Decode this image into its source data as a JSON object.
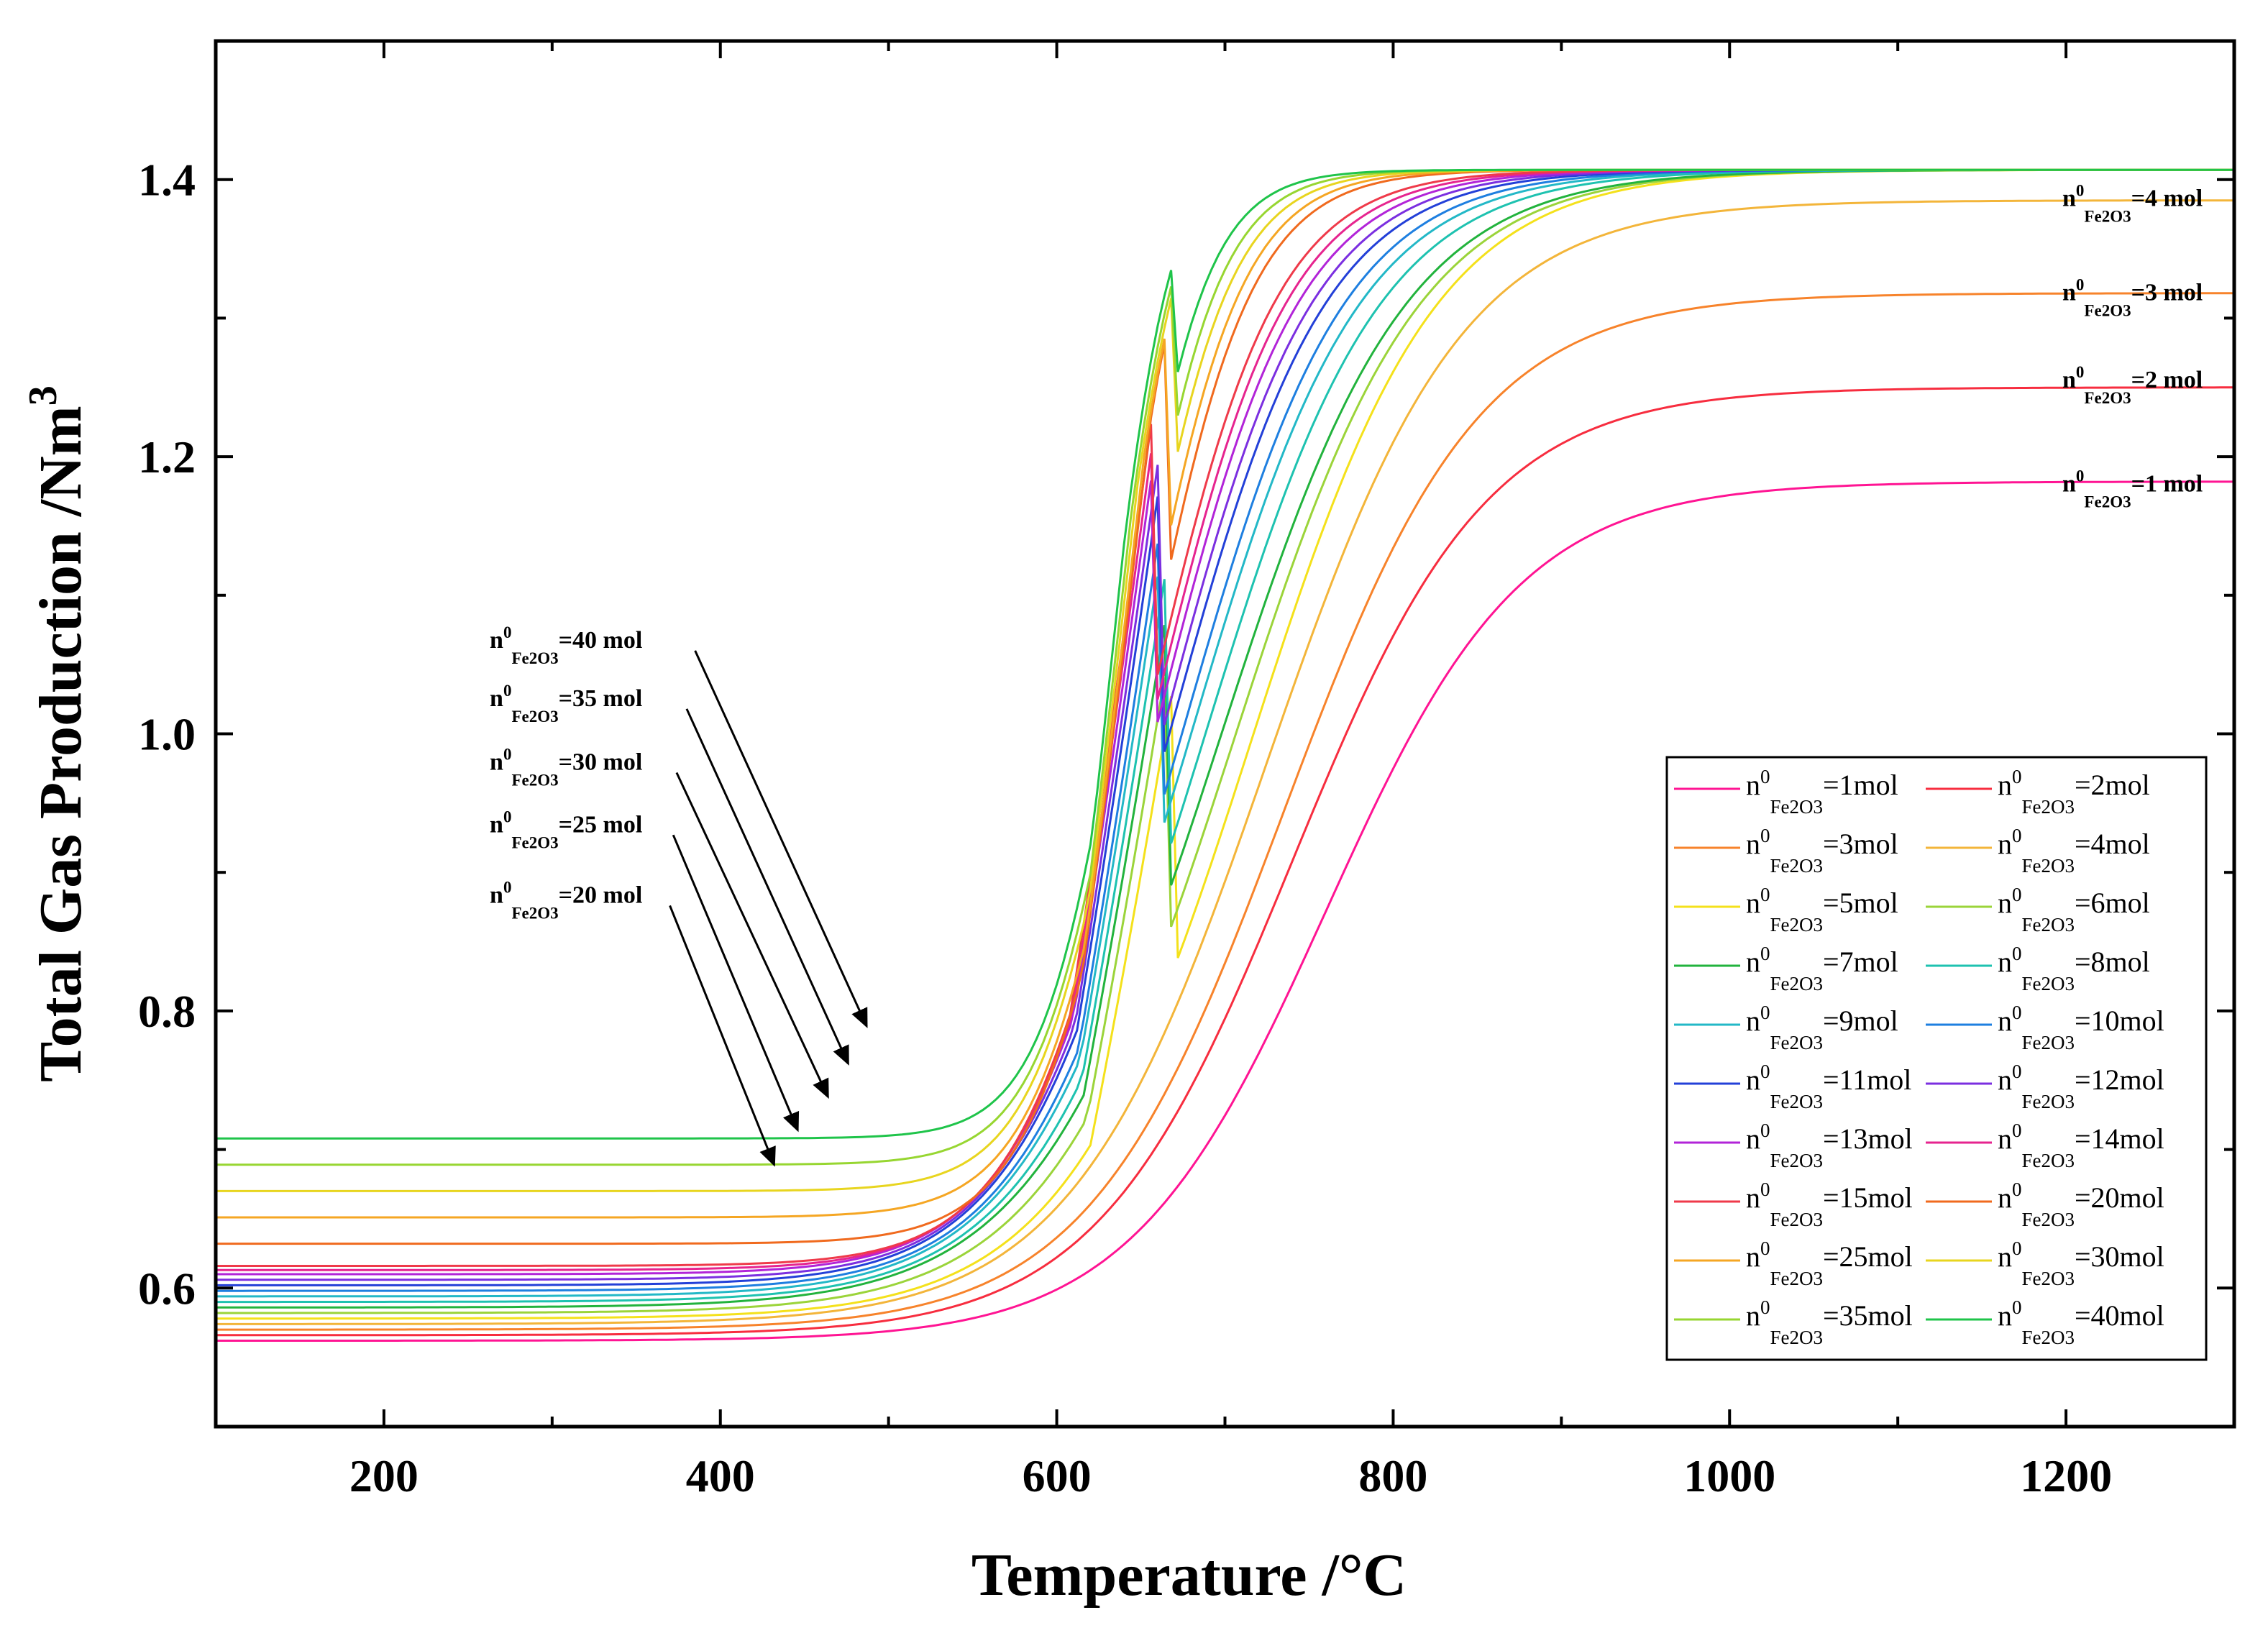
{
  "chart_data": {
    "type": "line",
    "title": "",
    "xlabel": "Temperature /°C",
    "ylabel": "Total Gas Production /Nm",
    "ylabel_sup": "3",
    "xlim": [
      100,
      1300
    ],
    "ylim": [
      0.5,
      1.5
    ],
    "x_ticks": [
      200,
      400,
      600,
      800,
      1000,
      1200
    ],
    "x_tick_labels": [
      "200",
      "400",
      "600",
      "800",
      "1000",
      "1200"
    ],
    "y_ticks": [
      0.6,
      0.8,
      1.0,
      1.2,
      1.4
    ],
    "y_tick_labels": [
      "0.6",
      "0.8",
      "1.0",
      "1.2",
      "1.4"
    ],
    "grid": false,
    "legend_position": "bottom-right",
    "legend_label_parts": {
      "n": "n",
      "sup": "0",
      "sub1": "Fe",
      "sub2": "2",
      "sub3": "O",
      "sub4": "3",
      "eq": "="
    },
    "series": [
      {
        "name": "n0Fe2O3=1mol",
        "label_value": "1mol",
        "color": "#ff1493",
        "y_start": 0.562,
        "mid": 760,
        "width": 58,
        "rise_end": 643,
        "y_plateau": 1.182
      },
      {
        "name": "n0Fe2O3=2mol",
        "label_value": "2mol",
        "color": "#f72d3f",
        "y_start": 0.566,
        "mid": 740,
        "width": 58,
        "rise_end": 638,
        "y_plateau": 1.25
      },
      {
        "name": "n0Fe2O3=3mol",
        "label_value": "3mol",
        "color": "#f7832b",
        "y_start": 0.57,
        "mid": 735,
        "width": 58,
        "rise_end": 634,
        "y_plateau": 1.318
      },
      {
        "name": "n0Fe2O3=4mol",
        "label_value": "4mol",
        "color": "#f3b53a",
        "y_start": 0.574,
        "mid": 725,
        "width": 58,
        "rise_end": 632,
        "y_plateau": 1.385
      },
      {
        "name": "n0Fe2O3=5mol",
        "label_value": "5mol",
        "color": "#f4e11b",
        "y_start": 0.578,
        "mid": 715,
        "width": 55,
        "rise_end": 630,
        "y_plateau": 1.407
      },
      {
        "name": "n0Fe2O3=6mol",
        "label_value": "6mol",
        "color": "#9bd43a",
        "y_start": 0.582,
        "mid": 705,
        "width": 55,
        "rise_end": 628,
        "y_plateau": 1.407
      },
      {
        "name": "n0Fe2O3=7mol",
        "label_value": "7mol",
        "color": "#22b33d",
        "y_start": 0.586,
        "mid": 697,
        "width": 55,
        "rise_end": 626,
        "y_plateau": 1.407
      },
      {
        "name": "n0Fe2O3=8mol",
        "label_value": "8mol",
        "color": "#1ec2b0",
        "y_start": 0.59,
        "mid": 688,
        "width": 52,
        "rise_end": 625,
        "y_plateau": 1.407
      },
      {
        "name": "n0Fe2O3=9mol",
        "label_value": "9mol",
        "color": "#23b8c7",
        "y_start": 0.594,
        "mid": 680,
        "width": 50,
        "rise_end": 624,
        "y_plateau": 1.407
      },
      {
        "name": "n0Fe2O3=10mol",
        "label_value": "10mol",
        "color": "#1e7fe0",
        "y_start": 0.598,
        "mid": 675,
        "width": 48,
        "rise_end": 623,
        "y_plateau": 1.407
      },
      {
        "name": "n0Fe2O3=11mol",
        "label_value": "11mol",
        "color": "#2340d8",
        "y_start": 0.602,
        "mid": 668,
        "width": 46,
        "rise_end": 622,
        "y_plateau": 1.407
      },
      {
        "name": "n0Fe2O3=12mol",
        "label_value": "12mol",
        "color": "#7b2fe0",
        "y_start": 0.606,
        "mid": 664,
        "width": 44,
        "rise_end": 621,
        "y_plateau": 1.407
      },
      {
        "name": "n0Fe2O3=13mol",
        "label_value": "13mol",
        "color": "#b224d8",
        "y_start": 0.61,
        "mid": 660,
        "width": 42,
        "rise_end": 620,
        "y_plateau": 1.407
      },
      {
        "name": "n0Fe2O3=14mol",
        "label_value": "14mol",
        "color": "#e6248f",
        "y_start": 0.613,
        "mid": 657,
        "width": 40,
        "rise_end": 619,
        "y_plateau": 1.407
      },
      {
        "name": "n0Fe2O3=15mol",
        "label_value": "15mol",
        "color": "#ef3a4a",
        "y_start": 0.616,
        "mid": 654,
        "width": 38,
        "rise_end": 618,
        "y_plateau": 1.407
      },
      {
        "name": "n0Fe2O3=20mol",
        "label_value": "20mol",
        "color": "#f06a1e",
        "y_start": 0.632,
        "mid": 650,
        "width": 32,
        "rise_end": 625,
        "y_plateau": 1.407
      },
      {
        "name": "n0Fe2O3=25mol",
        "label_value": "25mol",
        "color": "#f5a623",
        "y_start": 0.651,
        "mid": 648,
        "width": 30,
        "rise_end": 627,
        "y_plateau": 1.407
      },
      {
        "name": "n0Fe2O3=30mol",
        "label_value": "30mol",
        "color": "#e8d51f",
        "y_start": 0.67,
        "mid": 645,
        "width": 28,
        "rise_end": 629,
        "y_plateau": 1.407
      },
      {
        "name": "n0Fe2O3=35mol",
        "label_value": "35mol",
        "color": "#97d631",
        "y_start": 0.689,
        "mid": 643,
        "width": 26,
        "rise_end": 630,
        "y_plateau": 1.407
      },
      {
        "name": "n0Fe2O3=40mol",
        "label_value": "40mol",
        "color": "#1fc44a",
        "y_start": 0.708,
        "mid": 640,
        "width": 24,
        "rise_end": 631,
        "y_plateau": 1.407
      }
    ],
    "right_annotations": [
      {
        "value": "4 mol",
        "y": 1.381
      },
      {
        "value": "3 mol",
        "y": 1.313
      },
      {
        "value": "2 mol",
        "y": 1.25
      },
      {
        "value": "1 mol",
        "y": 1.175
      }
    ],
    "arrow_annotations": [
      {
        "value": "40 mol",
        "y_label": 1.062,
        "x_label": 280,
        "x_from": 385,
        "y_from": 1.06,
        "x_to": 487,
        "y_to": 0.789
      },
      {
        "value": "35 mol",
        "y_label": 1.02,
        "x_label": 280,
        "x_from": 380,
        "y_from": 1.018,
        "x_to": 476,
        "y_to": 0.762
      },
      {
        "value": "30 mol",
        "y_label": 0.974,
        "x_label": 280,
        "x_from": 374,
        "y_from": 0.972,
        "x_to": 464,
        "y_to": 0.738
      },
      {
        "value": "25 mol",
        "y_label": 0.929,
        "x_label": 280,
        "x_from": 372,
        "y_from": 0.927,
        "x_to": 446,
        "y_to": 0.714
      },
      {
        "value": "20 mol",
        "y_label": 0.878,
        "x_label": 280,
        "x_from": 370,
        "y_from": 0.876,
        "x_to": 432,
        "y_to": 0.689
      }
    ]
  }
}
